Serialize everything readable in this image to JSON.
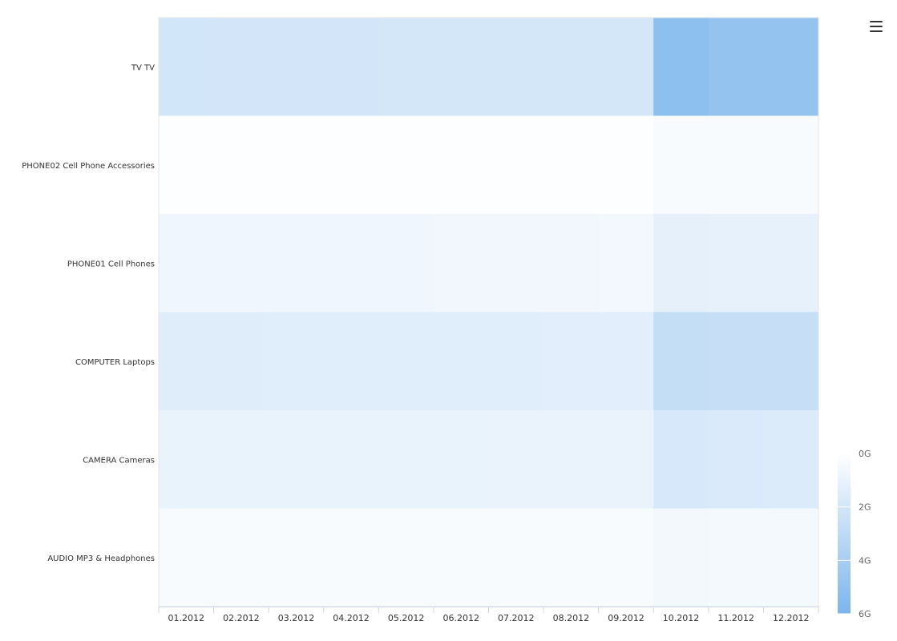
{
  "chart_data": {
    "type": "heatmap",
    "title": "",
    "xlabel": "",
    "ylabel": "",
    "x_categories": [
      "01.2012",
      "02.2012",
      "03.2012",
      "04.2012",
      "05.2012",
      "06.2012",
      "07.2012",
      "08.2012",
      "09.2012",
      "10.2012",
      "11.2012",
      "12.2012"
    ],
    "y_categories": [
      "TV TV",
      "PHONE02 Cell Phone Accessories",
      "PHONE01 Cell Phones",
      "COMPUTER Laptops",
      "CAMERA Cameras",
      "AUDIO MP3 & Headphones"
    ],
    "values": [
      [
        2.05,
        2.0,
        2.0,
        2.0,
        1.98,
        1.98,
        1.96,
        1.95,
        1.95,
        5.2,
        4.9,
        4.9
      ],
      [
        0.1,
        0.1,
        0.1,
        0.1,
        0.1,
        0.1,
        0.1,
        0.1,
        0.1,
        0.3,
        0.3,
        0.3
      ],
      [
        0.7,
        0.7,
        0.7,
        0.7,
        0.7,
        0.65,
        0.65,
        0.65,
        0.6,
        1.2,
        1.1,
        1.1
      ],
      [
        1.45,
        1.45,
        1.4,
        1.4,
        1.4,
        1.4,
        1.4,
        1.35,
        1.35,
        2.7,
        2.6,
        2.6
      ],
      [
        1.0,
        1.0,
        1.0,
        1.0,
        1.0,
        1.0,
        0.95,
        0.95,
        0.95,
        1.9,
        1.7,
        1.65
      ],
      [
        0.35,
        0.35,
        0.35,
        0.35,
        0.35,
        0.35,
        0.35,
        0.35,
        0.35,
        0.55,
        0.5,
        0.5
      ]
    ],
    "color_axis": {
      "min": 0,
      "max": 6,
      "min_color": "#ffffff",
      "max_color": "#7cb5ec",
      "tick_labels": [
        "0G",
        "2G",
        "4G",
        "6G"
      ],
      "tick_values": [
        0,
        2,
        4,
        6
      ]
    },
    "grid": false,
    "legend_placement": "bottom-right"
  },
  "ui": {
    "menu_icon": "hamburger-menu-icon"
  },
  "colors": {
    "axis_line": "#ccd6eb",
    "label_text": "#333333",
    "tick_text": "#666666"
  }
}
